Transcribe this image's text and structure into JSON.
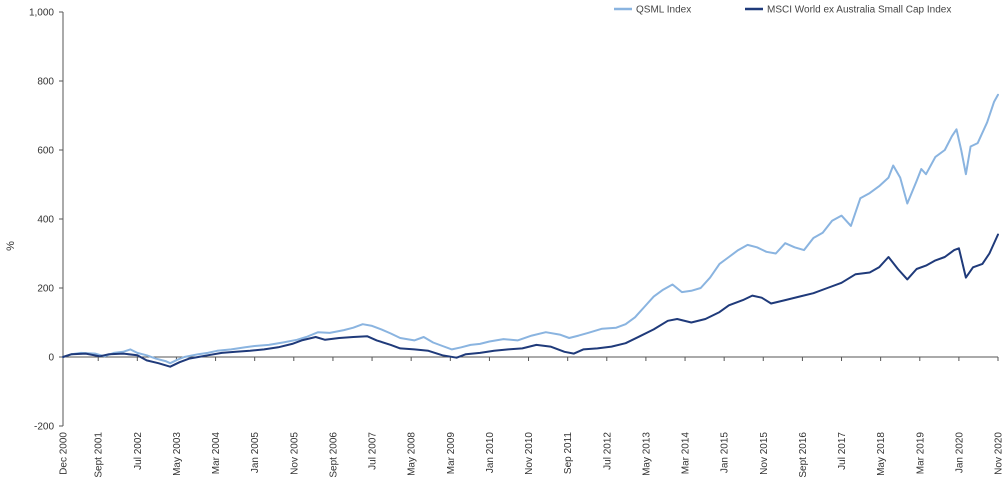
{
  "chart_data": {
    "type": "line",
    "ylabel": "%",
    "xlabel": "",
    "ylim": [
      -200,
      1000
    ],
    "yticks": [
      -200,
      0,
      200,
      400,
      600,
      800,
      1000
    ],
    "ytick_labels": [
      "-200",
      "0",
      "200",
      "400",
      "600",
      "800",
      "1,000"
    ],
    "xlim": [
      2000.917,
      2020.833
    ],
    "xticks": [
      {
        "x": 2000.917,
        "label": "Dec 2000"
      },
      {
        "x": 2001.667,
        "label": "Sept 2001"
      },
      {
        "x": 2002.5,
        "label": "Jul 2002"
      },
      {
        "x": 2003.333,
        "label": "May 2003"
      },
      {
        "x": 2004.167,
        "label": "Mar 2004"
      },
      {
        "x": 2005.0,
        "label": "Jan 2005"
      },
      {
        "x": 2005.833,
        "label": "Nov 2005"
      },
      {
        "x": 2006.667,
        "label": "Sept 2006"
      },
      {
        "x": 2007.5,
        "label": "Jul 2007"
      },
      {
        "x": 2008.333,
        "label": "May 2008"
      },
      {
        "x": 2009.167,
        "label": "Mar 2009"
      },
      {
        "x": 2010.0,
        "label": "Jan 2010"
      },
      {
        "x": 2010.833,
        "label": "Nov 2010"
      },
      {
        "x": 2011.667,
        "label": "Sep 2011"
      },
      {
        "x": 2012.5,
        "label": "Jul 2012"
      },
      {
        "x": 2013.333,
        "label": "May 2013"
      },
      {
        "x": 2014.167,
        "label": "Mar 2014"
      },
      {
        "x": 2015.0,
        "label": "Jan 2015"
      },
      {
        "x": 2015.833,
        "label": "Nov 2015"
      },
      {
        "x": 2016.667,
        "label": "Sept 2016"
      },
      {
        "x": 2017.5,
        "label": "Jul 2017"
      },
      {
        "x": 2018.333,
        "label": "May 2018"
      },
      {
        "x": 2019.167,
        "label": "Mar 2019"
      },
      {
        "x": 2020.0,
        "label": "Jan 2020"
      },
      {
        "x": 2020.833,
        "label": "Nov 2020"
      }
    ],
    "legend_position": "top-right",
    "grid": false,
    "series": [
      {
        "name": "QSML Index",
        "color": "#8ab4e0",
        "points": [
          [
            2000.917,
            0
          ],
          [
            2001.1,
            8
          ],
          [
            2001.3,
            12
          ],
          [
            2001.6,
            10
          ],
          [
            2001.8,
            2
          ],
          [
            2002.0,
            12
          ],
          [
            2002.2,
            15
          ],
          [
            2002.35,
            22
          ],
          [
            2002.5,
            12
          ],
          [
            2002.7,
            5
          ],
          [
            2002.9,
            -5
          ],
          [
            2003.1,
            -12
          ],
          [
            2003.2,
            -18
          ],
          [
            2003.35,
            -8
          ],
          [
            2003.5,
            0
          ],
          [
            2003.8,
            8
          ],
          [
            2004.0,
            12
          ],
          [
            2004.2,
            18
          ],
          [
            2004.5,
            22
          ],
          [
            2004.8,
            28
          ],
          [
            2005.0,
            32
          ],
          [
            2005.3,
            35
          ],
          [
            2005.6,
            42
          ],
          [
            2005.9,
            50
          ],
          [
            2006.1,
            58
          ],
          [
            2006.35,
            72
          ],
          [
            2006.6,
            70
          ],
          [
            2006.9,
            78
          ],
          [
            2007.1,
            85
          ],
          [
            2007.3,
            95
          ],
          [
            2007.5,
            90
          ],
          [
            2007.7,
            80
          ],
          [
            2007.9,
            68
          ],
          [
            2008.1,
            55
          ],
          [
            2008.4,
            48
          ],
          [
            2008.6,
            58
          ],
          [
            2008.8,
            42
          ],
          [
            2009.0,
            32
          ],
          [
            2009.2,
            22
          ],
          [
            2009.4,
            28
          ],
          [
            2009.6,
            35
          ],
          [
            2009.8,
            38
          ],
          [
            2010.0,
            45
          ],
          [
            2010.3,
            52
          ],
          [
            2010.6,
            48
          ],
          [
            2010.9,
            62
          ],
          [
            2011.2,
            72
          ],
          [
            2011.5,
            65
          ],
          [
            2011.7,
            55
          ],
          [
            2011.9,
            62
          ],
          [
            2012.1,
            70
          ],
          [
            2012.4,
            82
          ],
          [
            2012.7,
            85
          ],
          [
            2012.9,
            95
          ],
          [
            2013.1,
            115
          ],
          [
            2013.3,
            145
          ],
          [
            2013.5,
            175
          ],
          [
            2013.7,
            195
          ],
          [
            2013.9,
            210
          ],
          [
            2014.1,
            188
          ],
          [
            2014.3,
            192
          ],
          [
            2014.5,
            200
          ],
          [
            2014.7,
            230
          ],
          [
            2014.9,
            270
          ],
          [
            2015.1,
            290
          ],
          [
            2015.3,
            310
          ],
          [
            2015.5,
            325
          ],
          [
            2015.7,
            318
          ],
          [
            2015.9,
            305
          ],
          [
            2016.1,
            300
          ],
          [
            2016.3,
            330
          ],
          [
            2016.5,
            318
          ],
          [
            2016.7,
            310
          ],
          [
            2016.9,
            345
          ],
          [
            2017.1,
            360
          ],
          [
            2017.3,
            395
          ],
          [
            2017.5,
            410
          ],
          [
            2017.7,
            380
          ],
          [
            2017.9,
            460
          ],
          [
            2018.1,
            475
          ],
          [
            2018.3,
            495
          ],
          [
            2018.5,
            520
          ],
          [
            2018.6,
            555
          ],
          [
            2018.75,
            520
          ],
          [
            2018.9,
            445
          ],
          [
            2019.1,
            510
          ],
          [
            2019.2,
            545
          ],
          [
            2019.3,
            530
          ],
          [
            2019.5,
            580
          ],
          [
            2019.7,
            600
          ],
          [
            2019.85,
            640
          ],
          [
            2019.95,
            660
          ],
          [
            2020.05,
            600
          ],
          [
            2020.15,
            530
          ],
          [
            2020.25,
            610
          ],
          [
            2020.4,
            620
          ],
          [
            2020.6,
            680
          ],
          [
            2020.75,
            740
          ],
          [
            2020.833,
            760
          ]
        ]
      },
      {
        "name": "MSCI World ex Australia Small Cap Index",
        "color": "#1f3a7a",
        "points": [
          [
            2000.917,
            0
          ],
          [
            2001.1,
            8
          ],
          [
            2001.4,
            10
          ],
          [
            2001.7,
            2
          ],
          [
            2001.9,
            8
          ],
          [
            2002.2,
            10
          ],
          [
            2002.5,
            5
          ],
          [
            2002.7,
            -10
          ],
          [
            2002.95,
            -18
          ],
          [
            2003.2,
            -28
          ],
          [
            2003.4,
            -15
          ],
          [
            2003.6,
            -5
          ],
          [
            2003.8,
            0
          ],
          [
            2004.0,
            5
          ],
          [
            2004.3,
            12
          ],
          [
            2004.6,
            15
          ],
          [
            2004.9,
            18
          ],
          [
            2005.2,
            22
          ],
          [
            2005.5,
            28
          ],
          [
            2005.8,
            38
          ],
          [
            2006.0,
            48
          ],
          [
            2006.3,
            58
          ],
          [
            2006.5,
            50
          ],
          [
            2006.8,
            55
          ],
          [
            2007.1,
            58
          ],
          [
            2007.4,
            60
          ],
          [
            2007.6,
            48
          ],
          [
            2007.9,
            35
          ],
          [
            2008.1,
            25
          ],
          [
            2008.4,
            22
          ],
          [
            2008.7,
            18
          ],
          [
            2009.0,
            5
          ],
          [
            2009.3,
            -2
          ],
          [
            2009.5,
            8
          ],
          [
            2009.8,
            12
          ],
          [
            2010.1,
            18
          ],
          [
            2010.4,
            22
          ],
          [
            2010.7,
            25
          ],
          [
            2011.0,
            35
          ],
          [
            2011.3,
            30
          ],
          [
            2011.6,
            15
          ],
          [
            2011.8,
            10
          ],
          [
            2012.0,
            22
          ],
          [
            2012.3,
            25
          ],
          [
            2012.6,
            30
          ],
          [
            2012.9,
            40
          ],
          [
            2013.2,
            60
          ],
          [
            2013.5,
            80
          ],
          [
            2013.8,
            105
          ],
          [
            2014.0,
            110
          ],
          [
            2014.3,
            100
          ],
          [
            2014.6,
            110
          ],
          [
            2014.9,
            130
          ],
          [
            2015.1,
            150
          ],
          [
            2015.4,
            165
          ],
          [
            2015.6,
            178
          ],
          [
            2015.8,
            172
          ],
          [
            2016.0,
            155
          ],
          [
            2016.3,
            165
          ],
          [
            2016.6,
            175
          ],
          [
            2016.9,
            185
          ],
          [
            2017.2,
            200
          ],
          [
            2017.5,
            215
          ],
          [
            2017.8,
            240
          ],
          [
            2018.1,
            245
          ],
          [
            2018.3,
            260
          ],
          [
            2018.5,
            290
          ],
          [
            2018.7,
            255
          ],
          [
            2018.9,
            225
          ],
          [
            2019.1,
            255
          ],
          [
            2019.3,
            265
          ],
          [
            2019.5,
            280
          ],
          [
            2019.7,
            290
          ],
          [
            2019.9,
            310
          ],
          [
            2020.0,
            315
          ],
          [
            2020.15,
            230
          ],
          [
            2020.3,
            260
          ],
          [
            2020.5,
            270
          ],
          [
            2020.65,
            300
          ],
          [
            2020.833,
            355
          ]
        ]
      }
    ]
  }
}
